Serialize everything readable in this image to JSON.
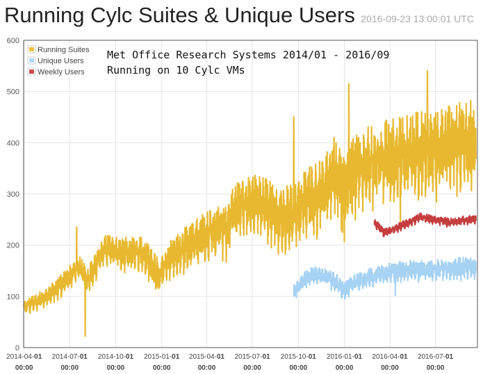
{
  "page": {
    "title": "Running Cylc Suites & Unique Users",
    "timestamp": "2016-09-23 13:00:01 UTC"
  },
  "chart_data": {
    "type": "line",
    "annotation_lines": [
      "Met Office Research Systems 2014/01 - 2016/09",
      "Running on 10 Cylc VMs"
    ],
    "ylim": [
      0,
      600
    ],
    "yticks": [
      0,
      100,
      200,
      300,
      400,
      500,
      600
    ],
    "xlim": [
      "2014-03-31",
      "2016-09-23"
    ],
    "xticks": [
      {
        "date": "2014-04-01",
        "label": "2014-04-",
        "bold": "01",
        "time": "00:00"
      },
      {
        "date": "2014-07-01",
        "label": "2014-07-",
        "bold": "01",
        "time": "00:00"
      },
      {
        "date": "2014-10-01",
        "label": "2014-10-",
        "bold": "01",
        "time": "00:00"
      },
      {
        "date": "2015-01-01",
        "label": "2015-01-",
        "bold": "01",
        "time": "00:00"
      },
      {
        "date": "2015-04-01",
        "label": "2015-04-",
        "bold": "01",
        "time": "00:00"
      },
      {
        "date": "2015-07-01",
        "label": "2015-07-",
        "bold": "01",
        "time": "00:00"
      },
      {
        "date": "2015-10-01",
        "label": "2015-10-",
        "bold": "01",
        "time": "00:00"
      },
      {
        "date": "2016-01-01",
        "label": "2016-01-",
        "bold": "01",
        "time": "00:00"
      },
      {
        "date": "2016-04-01",
        "label": "2016-04-",
        "bold": "01",
        "time": "00:00"
      },
      {
        "date": "2016-07-01",
        "label": "2016-07-",
        "bold": "01",
        "time": "00:00"
      }
    ],
    "grid": true,
    "legend_position": "top-left",
    "series": [
      {
        "name": "Running Suites",
        "color": "#EDC240",
        "stroke": "#E8B930",
        "style": "noisy-line",
        "base": [
          [
            "2014-03-31",
            80
          ],
          [
            "2014-04-20",
            88
          ],
          [
            "2014-05-15",
            100
          ],
          [
            "2014-06-10",
            120
          ],
          [
            "2014-07-01",
            140
          ],
          [
            "2014-07-20",
            160
          ],
          [
            "2014-08-05",
            130
          ],
          [
            "2014-08-20",
            160
          ],
          [
            "2014-09-10",
            195
          ],
          [
            "2014-10-10",
            185
          ],
          [
            "2014-11-10",
            190
          ],
          [
            "2014-12-01",
            180
          ],
          [
            "2014-12-25",
            140
          ],
          [
            "2015-01-15",
            170
          ],
          [
            "2015-02-15",
            195
          ],
          [
            "2015-03-15",
            215
          ],
          [
            "2015-04-10",
            230
          ],
          [
            "2015-05-10",
            230
          ],
          [
            "2015-05-25",
            270
          ],
          [
            "2015-06-10",
            280
          ],
          [
            "2015-07-15",
            290
          ],
          [
            "2015-08-20",
            260
          ],
          [
            "2015-09-20",
            260
          ],
          [
            "2015-10-20",
            290
          ],
          [
            "2015-11-20",
            310
          ],
          [
            "2015-12-15",
            350
          ],
          [
            "2016-01-01",
            300
          ],
          [
            "2016-01-20",
            345
          ],
          [
            "2016-02-15",
            360
          ],
          [
            "2016-03-15",
            370
          ],
          [
            "2016-04-15",
            375
          ],
          [
            "2016-05-15",
            385
          ],
          [
            "2016-06-15",
            385
          ],
          [
            "2016-07-15",
            395
          ],
          [
            "2016-08-15",
            400
          ],
          [
            "2016-09-20",
            405
          ]
        ],
        "amplitude": [
          [
            "2014-03-31",
            12
          ],
          [
            "2014-10-01",
            28
          ],
          [
            "2015-01-01",
            35
          ],
          [
            "2015-07-01",
            50
          ],
          [
            "2016-01-01",
            70
          ],
          [
            "2016-09-20",
            80
          ]
        ],
        "events": [
          {
            "date": "2014-08-01",
            "value": 22
          },
          {
            "date": "2014-07-15",
            "value": 235
          },
          {
            "date": "2015-09-22",
            "value": 450
          },
          {
            "date": "2015-12-28",
            "value": 225
          },
          {
            "date": "2016-01-01",
            "value": 207
          },
          {
            "date": "2016-01-10",
            "value": 515
          },
          {
            "date": "2016-04-22",
            "value": 240
          },
          {
            "date": "2016-06-15",
            "value": 540
          }
        ]
      },
      {
        "name": "Unique Users",
        "color": "#AFD8F8",
        "stroke": "#A6D2F4",
        "style": "noisy-line",
        "base": [
          [
            "2015-09-22",
            110
          ],
          [
            "2015-10-10",
            130
          ],
          [
            "2015-11-01",
            145
          ],
          [
            "2015-11-25",
            140
          ],
          [
            "2015-12-20",
            125
          ],
          [
            "2016-01-01",
            112
          ],
          [
            "2016-01-20",
            128
          ],
          [
            "2016-03-01",
            140
          ],
          [
            "2016-04-01",
            148
          ],
          [
            "2016-05-01",
            152
          ],
          [
            "2016-06-15",
            152
          ],
          [
            "2016-08-01",
            155
          ],
          [
            "2016-09-20",
            160
          ]
        ],
        "amplitude": [
          [
            "2015-09-22",
            15
          ],
          [
            "2016-01-01",
            16
          ],
          [
            "2016-09-20",
            20
          ]
        ],
        "events": [
          {
            "date": "2016-01-02",
            "value": 95
          },
          {
            "date": "2016-04-12",
            "value": 102
          }
        ]
      },
      {
        "name": "Weekly Users",
        "color": "#CB4B4B",
        "stroke": "#C53D3D",
        "style": "noisy-line",
        "base": [
          [
            "2016-03-01",
            245
          ],
          [
            "2016-03-20",
            225
          ],
          [
            "2016-04-10",
            232
          ],
          [
            "2016-05-10",
            245
          ],
          [
            "2016-06-01",
            255
          ],
          [
            "2016-07-01",
            250
          ],
          [
            "2016-08-01",
            245
          ],
          [
            "2016-09-20",
            252
          ]
        ],
        "amplitude": [
          [
            "2016-03-01",
            7
          ],
          [
            "2016-09-20",
            8
          ]
        ],
        "events": []
      }
    ]
  }
}
